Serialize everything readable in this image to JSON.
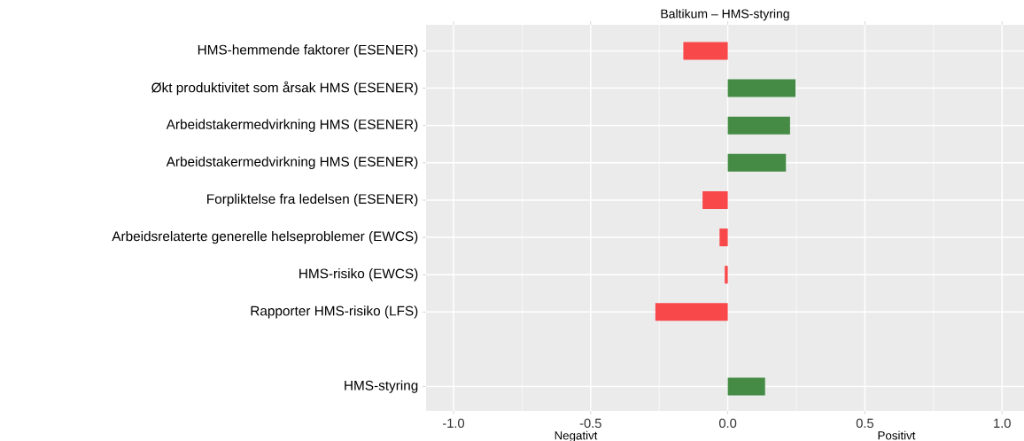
{
  "chart_data": {
    "type": "bar",
    "orientation": "horizontal",
    "title": "Baltikum – HMS-styring",
    "categories": [
      "HMS-hemmende faktorer (ESENER)",
      "Økt produktivitet som årsak HMS (ESENER)",
      "Arbeidstakermedvirkning HMS (ESENER)",
      "Arbeidstakermedvirkning HMS (ESENER)",
      "Forpliktelse fra ledelsen (ESENER)",
      "Arbeidsrelaterte generelle helseproblemer (EWCS)",
      "HMS-risiko (EWCS)",
      "Rapporter HMS-risiko (LFS)",
      null,
      "HMS-styring"
    ],
    "values": [
      -0.162,
      0.247,
      0.227,
      0.212,
      -0.092,
      -0.03,
      -0.011,
      -0.264,
      null,
      0.136
    ],
    "colors": [
      "#f8484a",
      "#458b45",
      "#458b45",
      "#458b45",
      "#f8484a",
      "#f8484a",
      "#f8484a",
      "#f8484a",
      null,
      "#458b45"
    ],
    "xlim": [
      -1.1,
      1.08
    ],
    "xticks": [
      {
        "value": -1,
        "label": "-1.0"
      },
      {
        "value": -0.5,
        "label": "-0.5"
      },
      {
        "value": 0,
        "label": "0.0"
      },
      {
        "value": 0.5,
        "label": "0.5"
      },
      {
        "value": 1,
        "label": "1.0"
      }
    ],
    "grid": true,
    "annotations": [
      "Negativt",
      "Positivt"
    ]
  }
}
